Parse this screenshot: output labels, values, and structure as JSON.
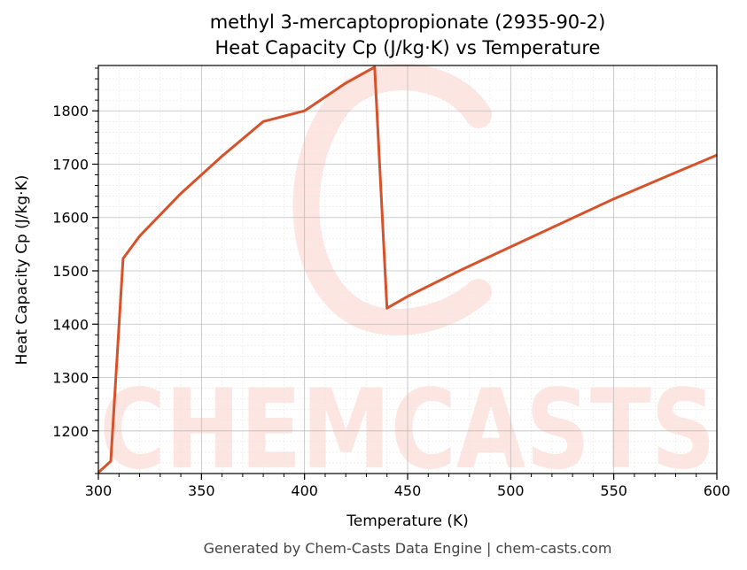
{
  "chart_data": {
    "type": "line",
    "title": "methyl 3-mercaptopropionate (2935-90-2)",
    "subtitle": "Heat Capacity Cp (J/kg·K) vs Temperature",
    "xlabel": "Temperature (K)",
    "ylabel": "Heat Capacity Cp (J/kg·K)",
    "xlim": [
      300,
      600
    ],
    "ylim": [
      1120,
      1885
    ],
    "xticks": [
      300,
      350,
      400,
      450,
      500,
      550,
      600
    ],
    "yticks": [
      1200,
      1300,
      1400,
      1500,
      1600,
      1700,
      1800
    ],
    "grid": true,
    "line_color": "#d6522a",
    "series": [
      {
        "x": [
          300,
          306,
          312,
          320,
          340,
          360,
          380,
          400,
          420,
          434,
          440,
          450,
          475,
          500,
          525,
          550,
          575,
          600
        ],
        "y": [
          1122,
          1143,
          1523,
          1565,
          1645,
          1715,
          1780,
          1800,
          1852,
          1882,
          1430,
          1452,
          1500,
          1545,
          1590,
          1635,
          1676,
          1717
        ]
      }
    ]
  },
  "watermark": {
    "text": "CHEMCASTS",
    "color": "#fde3de"
  },
  "footer": "Generated by Chem-Casts Data Engine | chem-casts.com"
}
